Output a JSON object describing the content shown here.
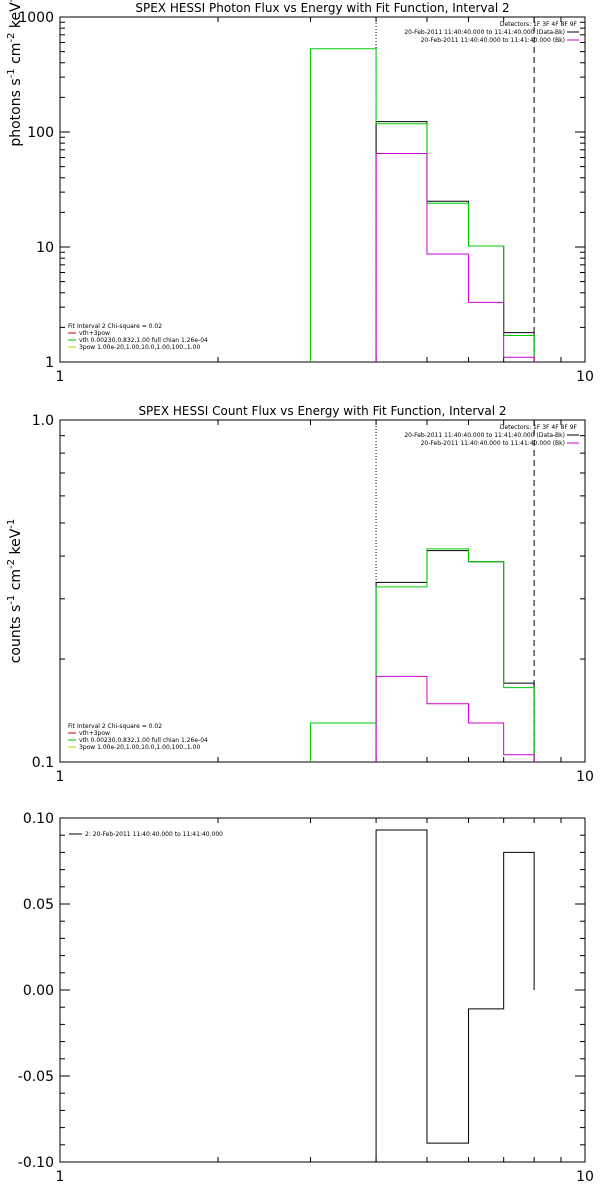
{
  "chart_data": [
    {
      "type": "line",
      "title": "SPEX HESSI Photon Flux vs Energy with Fit Function, Interval 2",
      "ylabel_main": "photons s",
      "ylabel_sup1": "-1",
      "ylabel_mid": " cm",
      "ylabel_sup2": "-2",
      "ylabel_tail": " keV",
      "ylabel_sup3": "-1",
      "xscale": "log",
      "yscale": "log",
      "xlim": [
        1,
        10
      ],
      "ylim": [
        1,
        1000
      ],
      "xticks": [
        {
          "v": 1,
          "label": "1"
        },
        {
          "v": 10,
          "label": "10"
        }
      ],
      "yticks": [
        {
          "v": 1,
          "label": "1"
        },
        {
          "v": 10,
          "label": "10"
        },
        {
          "v": 100,
          "label": "100"
        },
        {
          "v": 1000,
          "label": "1000"
        }
      ],
      "vlines": [
        {
          "x": 4.0,
          "style": "dotted"
        },
        {
          "x": 8.0,
          "style": "dashed"
        }
      ],
      "legend_topright": {
        "detectors": "Detectors: 1F 3F 4F 8F 9F",
        "entries": [
          {
            "label": "20-Feb-2011 11:40:40.000 to 11:41:40.000 (Data-Bk)",
            "color": "#000000"
          },
          {
            "label": "20-Feb-2011 11:40:40.000 to 11:41:40.000 (Bk)",
            "color": "#cc00cc"
          }
        ]
      },
      "legend_bottomleft": {
        "header": "Fit Interval 2   Chi-square = 0.02",
        "entries": [
          {
            "label": "vth+3pow",
            "color": "#cc0000"
          },
          {
            "label": "vth 0.00230,0.832,1.00  full chian 1.26e-04",
            "color": "#00cc00"
          },
          {
            "label": "3pow 1.00e-20,1.00,10.0,1.00,100.,1.00",
            "color": "#cccc00"
          }
        ]
      },
      "series": [
        {
          "color": "#000000",
          "edges": [
            4.0,
            5.0,
            6.0,
            7.0,
            8.0
          ],
          "values": [
            123,
            25,
            10.2,
            1.8
          ]
        },
        {
          "color": "#00cc00",
          "edges": [
            3.0,
            4.0,
            5.0,
            6.0,
            7.0,
            8.0
          ],
          "values": [
            530,
            118,
            24,
            10.2,
            1.7
          ]
        },
        {
          "color": "#cc00cc",
          "edges": [
            4.0,
            5.0,
            6.0,
            7.0,
            8.0
          ],
          "values": [
            65,
            8.7,
            3.3,
            1.1
          ]
        }
      ]
    },
    {
      "type": "line",
      "title": "SPEX HESSI Count Flux vs Energy with Fit Function, Interval 2",
      "ylabel_main": "counts s",
      "ylabel_sup1": "-1",
      "ylabel_mid": " cm",
      "ylabel_sup2": "-2",
      "ylabel_tail": " keV",
      "ylabel_sup3": "-1",
      "xscale": "log",
      "yscale": "log",
      "xlim": [
        1,
        10
      ],
      "ylim": [
        0.1,
        1.0
      ],
      "xticks": [
        {
          "v": 1,
          "label": "1"
        },
        {
          "v": 10,
          "label": "10"
        }
      ],
      "yticks": [
        {
          "v": 0.1,
          "label": "0.1"
        },
        {
          "v": 1.0,
          "label": "1.0"
        }
      ],
      "vlines": [
        {
          "x": 4.0,
          "style": "dotted"
        },
        {
          "x": 8.0,
          "style": "dashed"
        }
      ],
      "legend_topright": {
        "detectors": "Detectors: 1F 3F 4F 8F 9F",
        "entries": [
          {
            "label": "20-Feb-2011 11:40:40.000 to 11:41:40.000 (Data-Bk)",
            "color": "#000000"
          },
          {
            "label": "20-Feb-2011 11:40:40.000 to 11:41:40.000 (Bk)",
            "color": "#cc00cc"
          }
        ]
      },
      "legend_bottomleft": {
        "header": "Fit Interval 2   Chi-square = 0.02",
        "entries": [
          {
            "label": "vth+3pow",
            "color": "#cc0000"
          },
          {
            "label": "vth 0.00230,0.832,1.00  full chian 1.26e-04",
            "color": "#00cc00"
          },
          {
            "label": "3pow 1.00e-20,1.00,10.0,1.00,100.,1.00",
            "color": "#cccc00"
          }
        ]
      },
      "series": [
        {
          "color": "#000000",
          "edges": [
            4.0,
            5.0,
            6.0,
            7.0,
            8.0
          ],
          "values": [
            0.335,
            0.415,
            0.385,
            0.17
          ]
        },
        {
          "color": "#00cc00",
          "edges": [
            3.0,
            4.0,
            5.0,
            6.0,
            7.0,
            8.0
          ],
          "values": [
            0.13,
            0.325,
            0.42,
            0.385,
            0.165
          ]
        },
        {
          "color": "#cc00cc",
          "edges": [
            4.0,
            5.0,
            6.0,
            7.0,
            8.0
          ],
          "values": [
            0.178,
            0.148,
            0.13,
            0.105
          ]
        }
      ]
    },
    {
      "type": "line",
      "title": "",
      "xscale": "log",
      "yscale": "linear",
      "xlim": [
        1,
        10
      ],
      "ylim": [
        -0.1,
        0.1
      ],
      "xticks": [
        {
          "v": 1,
          "label": "1"
        },
        {
          "v": 10,
          "label": "10"
        }
      ],
      "yticks": [
        {
          "v": 0.1,
          "label": "0.10"
        },
        {
          "v": 0.05,
          "label": "0.05"
        },
        {
          "v": 0.0,
          "label": "0.00"
        },
        {
          "v": -0.05,
          "label": "-0.05"
        },
        {
          "v": -0.1,
          "label": "-0.10"
        }
      ],
      "legend_topleft": {
        "entries": [
          {
            "label": "2: 20-Feb-2011 11:40:40.000 to 11:41:40.000",
            "color": "#000000"
          }
        ]
      },
      "series": [
        {
          "color": "#000000",
          "edges": [
            4.0,
            5.0,
            6.0,
            7.0,
            8.0
          ],
          "values": [
            0.093,
            -0.089,
            -0.011,
            0.08
          ]
        }
      ]
    }
  ]
}
